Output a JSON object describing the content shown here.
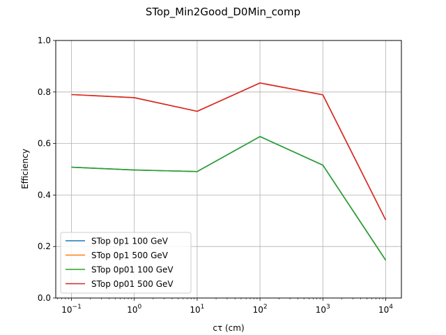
{
  "chart_data": {
    "type": "line",
    "title": "STop_Min2Good_D0Min_comp",
    "xlabel": "cτ (cm)",
    "ylabel": "Efficiency",
    "xscale": "log",
    "x": [
      0.1,
      1,
      10,
      100,
      1000,
      10000
    ],
    "x_tick_labels": [
      {
        "base": "10",
        "exp": "−1"
      },
      {
        "base": "10",
        "exp": "0"
      },
      {
        "base": "10",
        "exp": "1"
      },
      {
        "base": "10",
        "exp": "2"
      },
      {
        "base": "10",
        "exp": "3"
      },
      {
        "base": "10",
        "exp": "4"
      }
    ],
    "ylim": [
      0,
      1
    ],
    "y_ticks": [
      "0.0",
      "0.2",
      "0.4",
      "0.6",
      "0.8",
      "1.0"
    ],
    "grid": true,
    "legend_position": "lower-left",
    "series": [
      {
        "name": "STop 0p1 100 GeV",
        "color": "#1f77b4",
        "values": [
          0.508,
          0.497,
          0.491,
          0.627,
          0.516,
          0.147
        ]
      },
      {
        "name": "STop 0p1 500 GeV",
        "color": "#ff7f0e",
        "values": [
          0.79,
          0.778,
          0.725,
          0.835,
          0.789,
          0.303
        ]
      },
      {
        "name": "STop 0p01 100 GeV",
        "color": "#2ca02c",
        "values": [
          0.508,
          0.497,
          0.491,
          0.627,
          0.516,
          0.147
        ]
      },
      {
        "name": "STop 0p01 500 GeV",
        "color": "#d62728",
        "values": [
          0.79,
          0.778,
          0.725,
          0.835,
          0.789,
          0.303
        ]
      }
    ]
  }
}
